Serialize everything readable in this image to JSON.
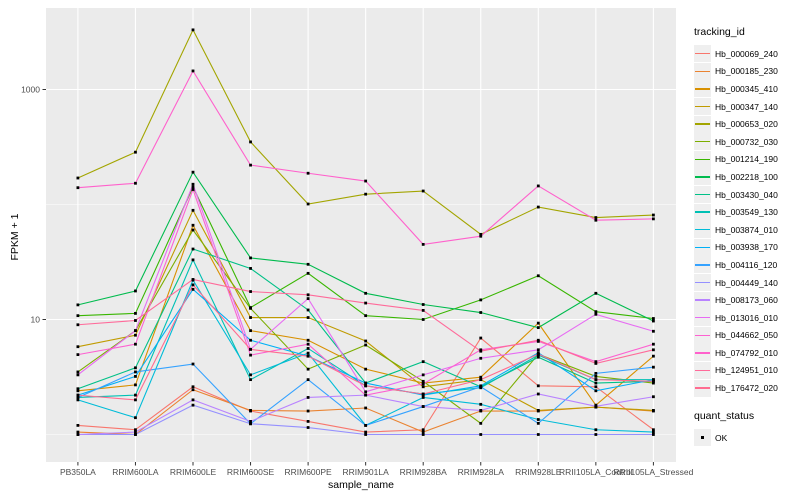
{
  "figure": {
    "background": "#ffffff",
    "panel_background": "#ebebeb",
    "grid_color": "#ffffff",
    "tick_label_color": "#4d4d4d",
    "point_color": "#000000"
  },
  "chart_data": {
    "type": "line",
    "title": "",
    "xlabel": "sample_name",
    "ylabel": "FPKM + 1",
    "y_scale": "log10",
    "y_tick_labels": [
      "10",
      "1000"
    ],
    "y_tick_values": [
      10,
      1000
    ],
    "y_minor_values": [
      1,
      100
    ],
    "ylim": [
      0.9,
      4800
    ],
    "grid": "on",
    "legend_position": "right",
    "x_categories": [
      "PB350LA",
      "RRIM600LA",
      "RRIM600LE",
      "RRIM600SE",
      "RRIM600PE",
      "RRIM901LA",
      "RRIM928BA",
      "RRIM928LA",
      "RRIM928LE",
      "RRII105LA_Control",
      "RRII105LA_Stressed"
    ],
    "series": [
      {
        "name": "Hb_000069_240",
        "color": "#F8766D",
        "values": [
          1.2,
          1.1,
          2.6,
          1.6,
          1.3,
          1.05,
          1.1,
          6.9,
          2.65,
          2.6,
          1.1
        ]
      },
      {
        "name": "Hb_000185_230",
        "color": "#EA8331",
        "values": [
          1.05,
          1.0,
          2.45,
          1.62,
          1.6,
          1.7,
          1.05,
          1.6,
          1.6,
          1.73,
          1.6
        ]
      },
      {
        "name": "Hb_000345_410",
        "color": "#D89000",
        "values": [
          2.4,
          2.7,
          66,
          8.0,
          6.6,
          3.7,
          2.8,
          3.15,
          9.3,
          1.8,
          4.8
        ]
      },
      {
        "name": "Hb_000347_140",
        "color": "#C09B00",
        "values": [
          5.8,
          7.3,
          89,
          10.4,
          10.4,
          6.5,
          2.6,
          3.0,
          1.62,
          1.73,
          1.62
        ]
      },
      {
        "name": "Hb_000653_020",
        "color": "#A3A500",
        "values": [
          170,
          285,
          3300,
          350,
          101,
          123,
          131,
          55,
          95,
          77,
          81
        ]
      },
      {
        "name": "Hb_000732_030",
        "color": "#7CAE00",
        "values": [
          3.5,
          8.0,
          60,
          12.5,
          3.7,
          6.0,
          2.9,
          1.25,
          5.0,
          3.2,
          2.8
        ]
      },
      {
        "name": "Hb_001214_190",
        "color": "#39B600",
        "values": [
          10.8,
          11.3,
          142,
          12.7,
          25.2,
          10.8,
          10.0,
          14.8,
          24.0,
          11.7,
          10.2
        ]
      },
      {
        "name": "Hb_002218_100",
        "color": "#00BB4E",
        "values": [
          13.4,
          17.7,
          191,
          34.3,
          30.2,
          16.9,
          13.5,
          11.5,
          8.5,
          16.9,
          9.7
        ]
      },
      {
        "name": "Hb_003430_040",
        "color": "#00C087",
        "values": [
          2.5,
          3.8,
          41,
          27.8,
          12.1,
          2.8,
          4.3,
          2.6,
          4.7,
          2.8,
          2.9
        ]
      },
      {
        "name": "Hb_003549_130",
        "color": "#00C0B4",
        "values": [
          2.1,
          2.2,
          33,
          3.0,
          5.6,
          2.65,
          2.25,
          2.55,
          4.9,
          3.0,
          3.0
        ]
      },
      {
        "name": "Hb_003874_010",
        "color": "#00BCD8",
        "values": [
          2.0,
          1.4,
          22,
          3.3,
          5.1,
          1.2,
          2.1,
          1.83,
          1.35,
          1.1,
          1.05
        ]
      },
      {
        "name": "Hb_003938_170",
        "color": "#00B0F6",
        "values": [
          2.2,
          3.2,
          18.3,
          6.6,
          4.8,
          2.8,
          2.2,
          2.65,
          5.14,
          2.4,
          3.0
        ]
      },
      {
        "name": "Hb_004116_120",
        "color": "#35A2FF",
        "values": [
          2.1,
          3.5,
          4.1,
          1.24,
          3.0,
          1.2,
          1.75,
          2.6,
          1.25,
          3.4,
          3.85
        ]
      },
      {
        "name": "Hb_004449_140",
        "color": "#9590FF",
        "values": [
          1.0,
          1.0,
          1.8,
          1.24,
          1.15,
          1.0,
          1.0,
          1.0,
          1.0,
          1.0,
          1.0
        ]
      },
      {
        "name": "Hb_008173_060",
        "color": "#B983FF",
        "values": [
          1.0,
          1.05,
          2.0,
          1.3,
          2.1,
          2.2,
          1.75,
          1.62,
          2.25,
          1.76,
          2.13
        ]
      },
      {
        "name": "Hb_013016_010",
        "color": "#E76BF3",
        "values": [
          3.3,
          8.0,
          150,
          5.5,
          15.2,
          2.35,
          3.3,
          4.6,
          5.45,
          11.1,
          7.9
        ]
      },
      {
        "name": "Hb_044662_050",
        "color": "#FD61D1",
        "values": [
          4.95,
          6.1,
          135,
          4.9,
          6.1,
          2.2,
          2.75,
          5.45,
          6.45,
          4.3,
          6.1
        ]
      },
      {
        "name": "Hb_074792_010",
        "color": "#FF61CC",
        "values": [
          140,
          153,
          1450,
          220,
          187,
          160,
          45,
          53,
          145,
          73,
          75
        ]
      },
      {
        "name": "Hb_124951_010",
        "color": "#FF6A9A",
        "values": [
          9.0,
          9.8,
          22.3,
          17.5,
          16.4,
          13.9,
          12.0,
          5.3,
          6.6,
          4.15,
          5.45
        ]
      },
      {
        "name": "Hb_176472_020",
        "color": "#FF6C90",
        "values": [
          2.2,
          2.0,
          20,
          5.5,
          4.8,
          2.65,
          2.25,
          3.0,
          5.0,
          3.0,
          2.9
        ]
      }
    ],
    "legend": {
      "tracking_title": "tracking_id",
      "quant_title": "quant_status",
      "quant_items": [
        {
          "label": "OK",
          "marker": "black-square"
        }
      ]
    }
  }
}
